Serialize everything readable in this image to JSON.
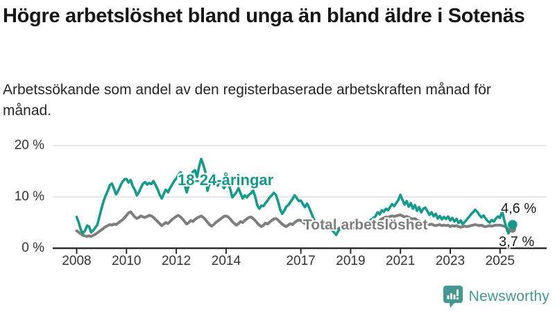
{
  "header": {
    "title": "Högre arbetslöshet bland unga än bland äldre i Sotenäs",
    "subtitle": "Arbetssökande som andel av den registerbaserade arbetskraften månad för månad."
  },
  "chart_data": {
    "type": "line",
    "unit": "percent",
    "frequency": "monthly",
    "x_start": "2008-01",
    "x_end": "2025-07",
    "ylim": [
      0,
      20
    ],
    "yticks": [
      0,
      10,
      20
    ],
    "ytick_suffix": " %",
    "ygrid": [
      10,
      20
    ],
    "grid": "horizontal-only",
    "xticks": [
      2008,
      2010,
      2012,
      2014,
      2017,
      2019,
      2021,
      2023,
      2025
    ],
    "series": [
      {
        "key": "total",
        "name": "Total arbetslöshet",
        "color": "#7e7e7e",
        "last_value_label": "3,7 %",
        "values": [
          3.4,
          3.1,
          2.8,
          2.5,
          2.4,
          2.3,
          2.4,
          2.3,
          2.5,
          2.7,
          3.0,
          3.3,
          3.6,
          3.9,
          4.2,
          4.4,
          4.6,
          4.5,
          4.7,
          4.6,
          4.9,
          5.2,
          5.5,
          5.9,
          6.4,
          6.9,
          7.1,
          6.6,
          6.1,
          5.8,
          6.0,
          6.3,
          6.1,
          6.0,
          6.2,
          6.4,
          6.3,
          6.0,
          5.6,
          5.2,
          4.8,
          4.4,
          4.7,
          5.0,
          4.8,
          5.2,
          5.6,
          5.9,
          6.2,
          6.4,
          6.1,
          5.7,
          5.2,
          4.7,
          5.0,
          5.4,
          5.2,
          5.6,
          5.9,
          6.1,
          6.3,
          6.0,
          5.6,
          5.1,
          4.6,
          4.3,
          4.6,
          5.0,
          5.3,
          5.6,
          5.9,
          6.2,
          6.3,
          6.1,
          5.7,
          5.2,
          4.8,
          4.5,
          4.8,
          5.2,
          5.0,
          5.4,
          5.7,
          6.0,
          6.1,
          5.8,
          5.4,
          4.9,
          4.5,
          4.2,
          4.5,
          4.9,
          4.7,
          5.1,
          5.4,
          5.7,
          5.8,
          5.5,
          5.1,
          4.7,
          4.4,
          4.2,
          4.5,
          4.8,
          4.6,
          5.0,
          5.3,
          5.5,
          5.4,
          5.1,
          4.8,
          4.5,
          4.3,
          4.1,
          4.3,
          4.6,
          4.4,
          4.2,
          4.4,
          4.6,
          4.4,
          4.2,
          4.0,
          3.8,
          3.7,
          3.6,
          3.8,
          4.0,
          3.9,
          4.1,
          4.2,
          4.3,
          4.2,
          4.0,
          3.9,
          4.0,
          4.2,
          4.4,
          4.3,
          4.5,
          4.4,
          4.6,
          4.7,
          4.8,
          4.9,
          5.1,
          5.4,
          5.7,
          5.9,
          6.1,
          6.0,
          6.2,
          6.3,
          6.2,
          6.3,
          6.4,
          6.5,
          6.3,
          6.1,
          6.2,
          6.0,
          5.8,
          5.7,
          5.8,
          5.5,
          5.3,
          5.2,
          5.1,
          5.0,
          4.8,
          4.6,
          4.7,
          4.5,
          4.4,
          4.5,
          4.6,
          4.4,
          4.5,
          4.4,
          4.5,
          4.2,
          4.4,
          4.3,
          4.4,
          4.2,
          4.1,
          4.2,
          4.3,
          4.2,
          4.3,
          4.4,
          4.5,
          4.6,
          4.5,
          4.4,
          4.5,
          4.3,
          4.2,
          4.3,
          4.4,
          4.3,
          4.4,
          4.5,
          4.5,
          4.5,
          4.4,
          4.3,
          4.1,
          3.6,
          3.4,
          3.7
        ]
      },
      {
        "key": "youth",
        "name": "18-24-åringar",
        "color": "#149a8b",
        "last_value_label": "4,6 %",
        "values": [
          6.1,
          5.0,
          3.6,
          2.9,
          3.4,
          4.4,
          4.2,
          3.1,
          3.5,
          4.0,
          4.6,
          6.2,
          7.8,
          9.2,
          10.3,
          11.2,
          12.3,
          12.6,
          11.6,
          10.5,
          11.2,
          12.1,
          12.9,
          13.4,
          13.5,
          12.8,
          13.3,
          12.1,
          11.4,
          10.3,
          10.9,
          11.8,
          12.6,
          12.9,
          12.4,
          12.7,
          12.5,
          13.1,
          12.3,
          11.5,
          10.4,
          9.7,
          10.6,
          11.4,
          10.9,
          11.7,
          12.4,
          13.1,
          13.6,
          14.3,
          14.8,
          13.8,
          12.4,
          10.9,
          12.2,
          13.4,
          14.9,
          15.2,
          13.9,
          15.9,
          17.4,
          16.3,
          14.9,
          11.2,
          12.5,
          13.7,
          14.5,
          13.1,
          12.2,
          13.2,
          12.5,
          11.7,
          12.5,
          13.0,
          11.5,
          9.9,
          10.4,
          10.9,
          11.7,
          10.7,
          9.7,
          10.3,
          9.9,
          10.4,
          10.7,
          11.3,
          10.1,
          8.4,
          7.7,
          8.3,
          8.2,
          8.8,
          9.3,
          9.9,
          10.3,
          10.8,
          10.4,
          9.2,
          7.6,
          6.7,
          7.3,
          8.1,
          8.4,
          9.0,
          9.6,
          10.3,
          9.8,
          9.2,
          9.3,
          8.6,
          8.0,
          8.7,
          7.9,
          6.9,
          5.9,
          5.1,
          4.6,
          4.9,
          4.4,
          4.7,
          4.3,
          4.8,
          4.2,
          3.6,
          3.1,
          2.6,
          3.3,
          3.9,
          3.6,
          4.1,
          4.4,
          4.6,
          4.4,
          4.9,
          4.6,
          4.2,
          4.6,
          5.0,
          4.7,
          5.2,
          4.9,
          5.3,
          5.6,
          5.9,
          6.2,
          7.0,
          6.6,
          7.4,
          7.1,
          7.7,
          7.4,
          8.0,
          8.6,
          8.2,
          8.8,
          9.4,
          10.4,
          9.4,
          8.5,
          9.2,
          8.1,
          8.8,
          7.7,
          8.4,
          7.3,
          8.0,
          7.0,
          7.7,
          7.9,
          7.2,
          6.5,
          7.0,
          6.2,
          6.7,
          5.8,
          6.3,
          5.6,
          6.1,
          5.7,
          6.2,
          5.4,
          5.9,
          5.2,
          5.7,
          4.9,
          5.4,
          4.7,
          5.1,
          5.6,
          6.1,
          6.6,
          7.0,
          7.5,
          7.1,
          6.5,
          6.0,
          6.4,
          5.8,
          5.3,
          5.0,
          5.5,
          5.2,
          5.8,
          6.2,
          5.9,
          7.3,
          5.5,
          4.0,
          2.9,
          3.6,
          4.6
        ]
      }
    ]
  },
  "chart_style": {
    "grid_color": "#e0e0e0",
    "axis_color": "#2d2d2d",
    "youth_color": "#149a8b",
    "total_color": "#7e7e7e"
  },
  "footer": {
    "brand": "Newsworthy",
    "brand_color": "#459791",
    "brand_icon": "speech-bubble-bar-chart-icon"
  }
}
